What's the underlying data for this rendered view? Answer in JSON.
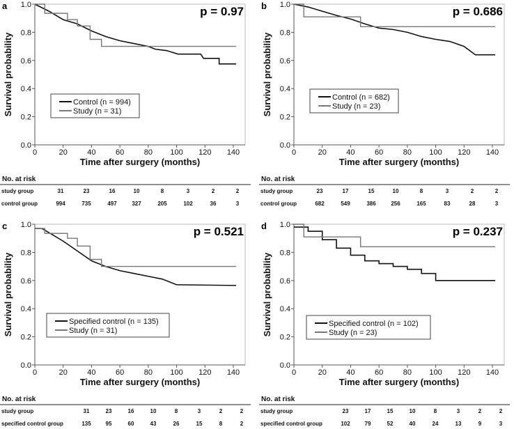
{
  "chart_data": [
    {
      "type": "line",
      "panel": "a",
      "p_value": "p = 0.97",
      "xlabel": "Time after surgery (months)",
      "ylabel": "Survival probability",
      "xlim": [
        0,
        150
      ],
      "ylim": [
        0,
        1.0
      ],
      "xticks": [
        "0",
        "20",
        "40",
        "60",
        "80",
        "100",
        "120",
        "140"
      ],
      "yticks": [
        "0.0",
        "0.2",
        "0.4",
        "0.6",
        "0.8",
        "1.0"
      ],
      "series": [
        {
          "name": "Control (n = 994)",
          "color": "#111111",
          "points": [
            [
              0,
              1
            ],
            [
              10,
              0.95
            ],
            [
              20,
              0.89
            ],
            [
              30,
              0.86
            ],
            [
              40,
              0.81
            ],
            [
              50,
              0.77
            ],
            [
              60,
              0.74
            ],
            [
              70,
              0.72
            ],
            [
              80,
              0.7
            ],
            [
              85,
              0.68
            ],
            [
              93,
              0.67
            ],
            [
              101,
              0.645
            ],
            [
              117,
              0.645
            ],
            [
              119,
              0.615
            ],
            [
              130,
              0.615
            ],
            [
              130,
              0.575
            ],
            [
              142,
              0.575
            ]
          ],
          "step": false
        },
        {
          "name": "Study (n = 31)",
          "color": "#777777",
          "points": [
            [
              0,
              1
            ],
            [
              7,
              0.935
            ],
            [
              23,
              0.89
            ],
            [
              30,
              0.845
            ],
            [
              39,
              0.75
            ],
            [
              47,
              0.7
            ],
            [
              142,
              0.7
            ]
          ],
          "step": true
        }
      ],
      "risk_table": {
        "title": "No. at risk",
        "rows": [
          {
            "label": "study group",
            "values": [
              31,
              23,
              16,
              10,
              8,
              3,
              2,
              2
            ]
          },
          {
            "label": "control group",
            "values": [
              994,
              735,
              497,
              327,
              205,
              102,
              36,
              3
            ]
          }
        ]
      }
    },
    {
      "type": "line",
      "panel": "b",
      "p_value": "p = 0.686",
      "xlabel": "Time after surgery (months)",
      "ylabel": "Survival probability",
      "xlim": [
        0,
        150
      ],
      "ylim": [
        0,
        1.0
      ],
      "xticks": [
        "0",
        "20",
        "40",
        "60",
        "80",
        "100",
        "120",
        "140"
      ],
      "yticks": [
        "0.0",
        "0.2",
        "0.4",
        "0.6",
        "0.8",
        "1.0"
      ],
      "series": [
        {
          "name": "Control (n = 682)",
          "color": "#111111",
          "points": [
            [
              0,
              1
            ],
            [
              10,
              0.98
            ],
            [
              20,
              0.95
            ],
            [
              30,
              0.92
            ],
            [
              40,
              0.895
            ],
            [
              50,
              0.86
            ],
            [
              60,
              0.83
            ],
            [
              70,
              0.82
            ],
            [
              80,
              0.8
            ],
            [
              90,
              0.77
            ],
            [
              100,
              0.75
            ],
            [
              110,
              0.735
            ],
            [
              120,
              0.7
            ],
            [
              128,
              0.64
            ],
            [
              142,
              0.64
            ]
          ],
          "step": false
        },
        {
          "name": "Study (n = 23)",
          "color": "#777777",
          "points": [
            [
              0,
              1
            ],
            [
              7,
              0.91
            ],
            [
              47,
              0.84
            ],
            [
              142,
              0.84
            ]
          ],
          "step": true
        }
      ],
      "risk_table": {
        "title": "No. at risk",
        "rows": [
          {
            "label": "study group",
            "values": [
              23,
              17,
              15,
              10,
              8,
              3,
              2,
              2
            ]
          },
          {
            "label": "control group",
            "values": [
              682,
              549,
              386,
              256,
              165,
              83,
              28,
              3
            ]
          }
        ]
      }
    },
    {
      "type": "line",
      "panel": "c",
      "p_value": "p = 0.521",
      "xlabel": "Time after surgery (months)",
      "ylabel": "Survival probability",
      "xlim": [
        0,
        150
      ],
      "ylim": [
        0,
        1.0
      ],
      "xticks": [
        "0",
        "20",
        "40",
        "60",
        "80",
        "100",
        "120",
        "140"
      ],
      "yticks": [
        "0.0",
        "0.2",
        "0.4",
        "0.6",
        "0.8",
        "1.0"
      ],
      "series": [
        {
          "name": "Specified control (n = 135)",
          "color": "#111111",
          "points": [
            [
              0,
              0.97
            ],
            [
              5,
              0.97
            ],
            [
              10,
              0.94
            ],
            [
              20,
              0.88
            ],
            [
              30,
              0.81
            ],
            [
              40,
              0.74
            ],
            [
              50,
              0.7
            ],
            [
              60,
              0.67
            ],
            [
              70,
              0.65
            ],
            [
              80,
              0.63
            ],
            [
              90,
              0.61
            ],
            [
              100,
              0.57
            ],
            [
              142,
              0.565
            ]
          ],
          "step": false
        },
        {
          "name": "Study (n = 31)",
          "color": "#777777",
          "points": [
            [
              0,
              0.97
            ],
            [
              7,
              0.935
            ],
            [
              23,
              0.9
            ],
            [
              30,
              0.845
            ],
            [
              39,
              0.75
            ],
            [
              47,
              0.7
            ],
            [
              142,
              0.7
            ]
          ],
          "step": true
        }
      ],
      "risk_table": {
        "title": "No. at risk",
        "rows": [
          {
            "label": "study group",
            "values": [
              31,
              23,
              16,
              10,
              8,
              3,
              2,
              2
            ]
          },
          {
            "label": "specified control group",
            "values": [
              135,
              95,
              60,
              43,
              26,
              15,
              8,
              2
            ]
          }
        ]
      }
    },
    {
      "type": "line",
      "panel": "d",
      "p_value": "p = 0.237",
      "xlabel": "Time after surgery (months)",
      "ylabel": "Survival probability",
      "xlim": [
        0,
        150
      ],
      "ylim": [
        0,
        1.0
      ],
      "xticks": [
        "0",
        "20",
        "40",
        "60",
        "80",
        "100",
        "120",
        "140"
      ],
      "yticks": [
        "0.0",
        "0.2",
        "0.4",
        "0.6",
        "0.8",
        "1.0"
      ],
      "series": [
        {
          "name": "Specified control (n = 102)",
          "color": "#111111",
          "points": [
            [
              0,
              0.98
            ],
            [
              10,
              0.95
            ],
            [
              20,
              0.89
            ],
            [
              30,
              0.83
            ],
            [
              40,
              0.78
            ],
            [
              50,
              0.74
            ],
            [
              60,
              0.72
            ],
            [
              70,
              0.7
            ],
            [
              80,
              0.68
            ],
            [
              90,
              0.65
            ],
            [
              100,
              0.6
            ],
            [
              142,
              0.6
            ]
          ],
          "step": true
        },
        {
          "name": "Study (n = 23)",
          "color": "#777777",
          "points": [
            [
              0,
              1
            ],
            [
              7,
              0.91
            ],
            [
              47,
              0.84
            ],
            [
              142,
              0.84
            ]
          ],
          "step": true
        }
      ],
      "risk_table": {
        "title": "No. at risk",
        "rows": [
          {
            "label": "study group",
            "values": [
              23,
              17,
              15,
              10,
              8,
              3,
              2,
              2
            ]
          },
          {
            "label": "specified control group",
            "values": [
              102,
              79,
              52,
              40,
              24,
              13,
              9,
              3
            ]
          }
        ]
      }
    }
  ]
}
